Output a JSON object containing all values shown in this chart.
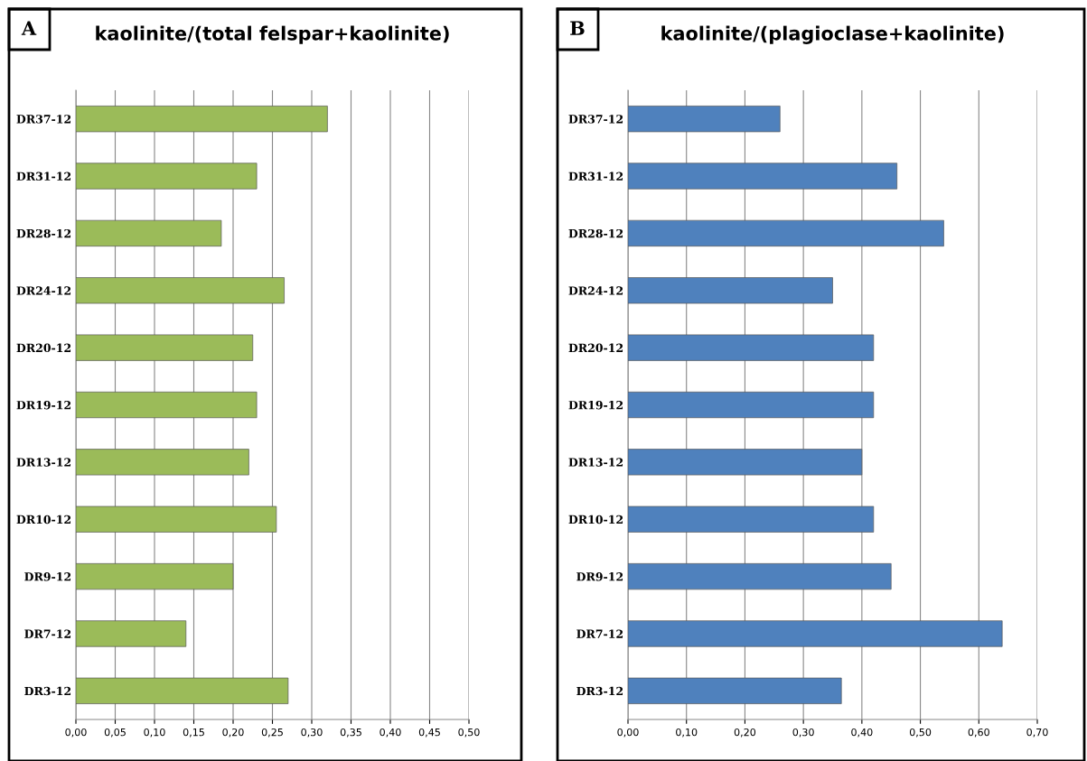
{
  "chart_data": [
    {
      "type": "bar",
      "orientation": "horizontal",
      "title": "kaolinite/(total felspar+kaolinite)",
      "annotations": [
        "A"
      ],
      "categories": [
        "DR37-12",
        "DR31-12",
        "DR28-12",
        "DR24-12",
        "DR20-12",
        "DR19-12",
        "DR13-12",
        "DR10-12",
        "DR9-12",
        "DR7-12",
        "DR3-12"
      ],
      "values": [
        0.32,
        0.23,
        0.185,
        0.265,
        0.225,
        0.23,
        0.22,
        0.255,
        0.2,
        0.14,
        0.27
      ],
      "color": "#9bbb59",
      "xlim": [
        0,
        0.5
      ],
      "xticks": [
        {
          "value": 0,
          "label": "0,00"
        },
        {
          "value": 0.05,
          "label": "0,05"
        },
        {
          "value": 0.1,
          "label": "0,10"
        },
        {
          "value": 0.15,
          "label": "0,15"
        },
        {
          "value": 0.2,
          "label": "0,20"
        },
        {
          "value": 0.25,
          "label": "0,25"
        },
        {
          "value": 0.3,
          "label": "0,30"
        },
        {
          "value": 0.35,
          "label": "0,35"
        },
        {
          "value": 0.4,
          "label": "0,40"
        },
        {
          "value": 0.45,
          "label": "0,45"
        },
        {
          "value": 0.5,
          "label": "0,50"
        }
      ],
      "grid": "x"
    },
    {
      "type": "bar",
      "orientation": "horizontal",
      "title": "kaolinite/(plagioclase+kaolinite)",
      "annotations": [
        "B"
      ],
      "categories": [
        "DR37-12",
        "DR31-12",
        "DR28-12",
        "DR24-12",
        "DR20-12",
        "DR19-12",
        "DR13-12",
        "DR10-12",
        "DR9-12",
        "DR7-12",
        "DR3-12"
      ],
      "values": [
        0.26,
        0.46,
        0.54,
        0.35,
        0.42,
        0.42,
        0.4,
        0.42,
        0.45,
        0.64,
        0.365
      ],
      "color": "#4f81bd",
      "xlim": [
        0,
        0.7
      ],
      "xticks": [
        {
          "value": 0,
          "label": "0,00"
        },
        {
          "value": 0.1,
          "label": "0,10"
        },
        {
          "value": 0.2,
          "label": "0,20"
        },
        {
          "value": 0.3,
          "label": "0,30"
        },
        {
          "value": 0.4,
          "label": "0,40"
        },
        {
          "value": 0.5,
          "label": "0,50"
        },
        {
          "value": 0.6,
          "label": "0,60"
        },
        {
          "value": 0.7,
          "label": "0,70"
        }
      ],
      "grid": "x"
    }
  ]
}
